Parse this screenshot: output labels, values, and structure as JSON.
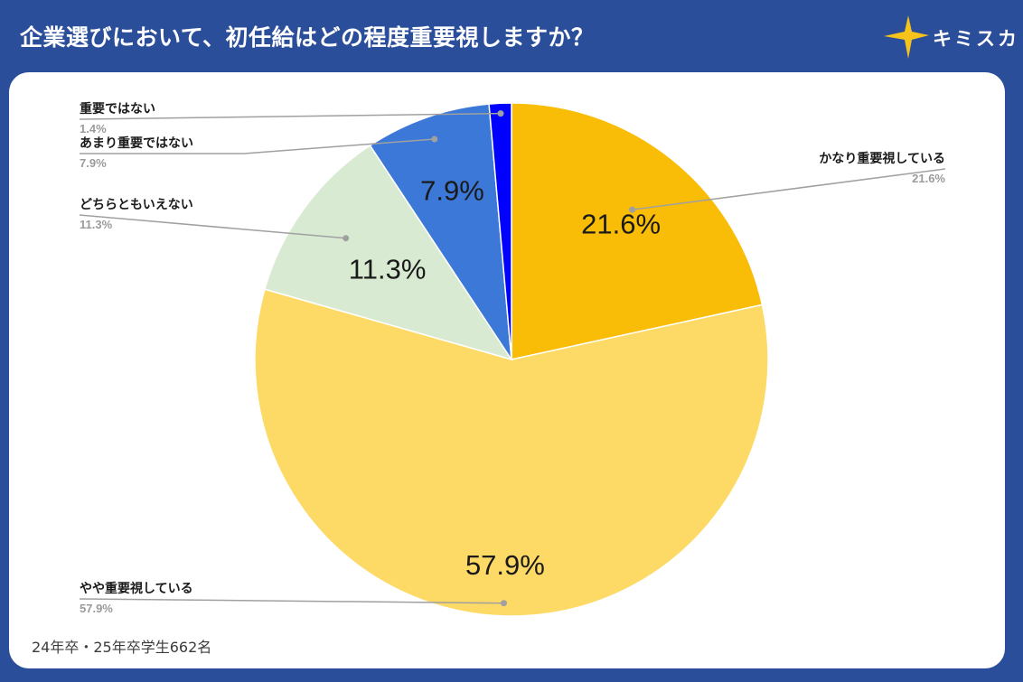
{
  "header": {
    "title": "企業選びにおいて、初任給はどの程度重要視しますか？",
    "logo_text": "キミスカ",
    "logo_icon": "star-icon",
    "logo_star_color": "#f6c31a"
  },
  "footnote": "24年卒・25年卒学生662名",
  "chart_data": {
    "type": "pie",
    "title": "",
    "start": "top",
    "direction": "clockwise",
    "series": [
      {
        "name": "",
        "slices": [
          {
            "label": "かなり重要視している",
            "value": 21.6,
            "value_label": "21.6%",
            "color": "#f9bd07"
          },
          {
            "label": "やや重要視している",
            "value": 57.9,
            "value_label": "57.9%",
            "color": "#fdd966"
          },
          {
            "label": "どちらともいえない",
            "value": 11.3,
            "value_label": "11.3%",
            "color": "#d9ead3"
          },
          {
            "label": "あまり重要ではない",
            "value": 7.9,
            "value_label": "7.9%",
            "color": "#3c78d8"
          },
          {
            "label": "重要ではない",
            "value": 1.4,
            "value_label": "1.4%",
            "color": "#0000ff"
          }
        ]
      }
    ],
    "callout_line_color": "#a0a0a0",
    "callout_text_color": "#1a1a1a",
    "callout_value_color": "#9b9b9b"
  }
}
